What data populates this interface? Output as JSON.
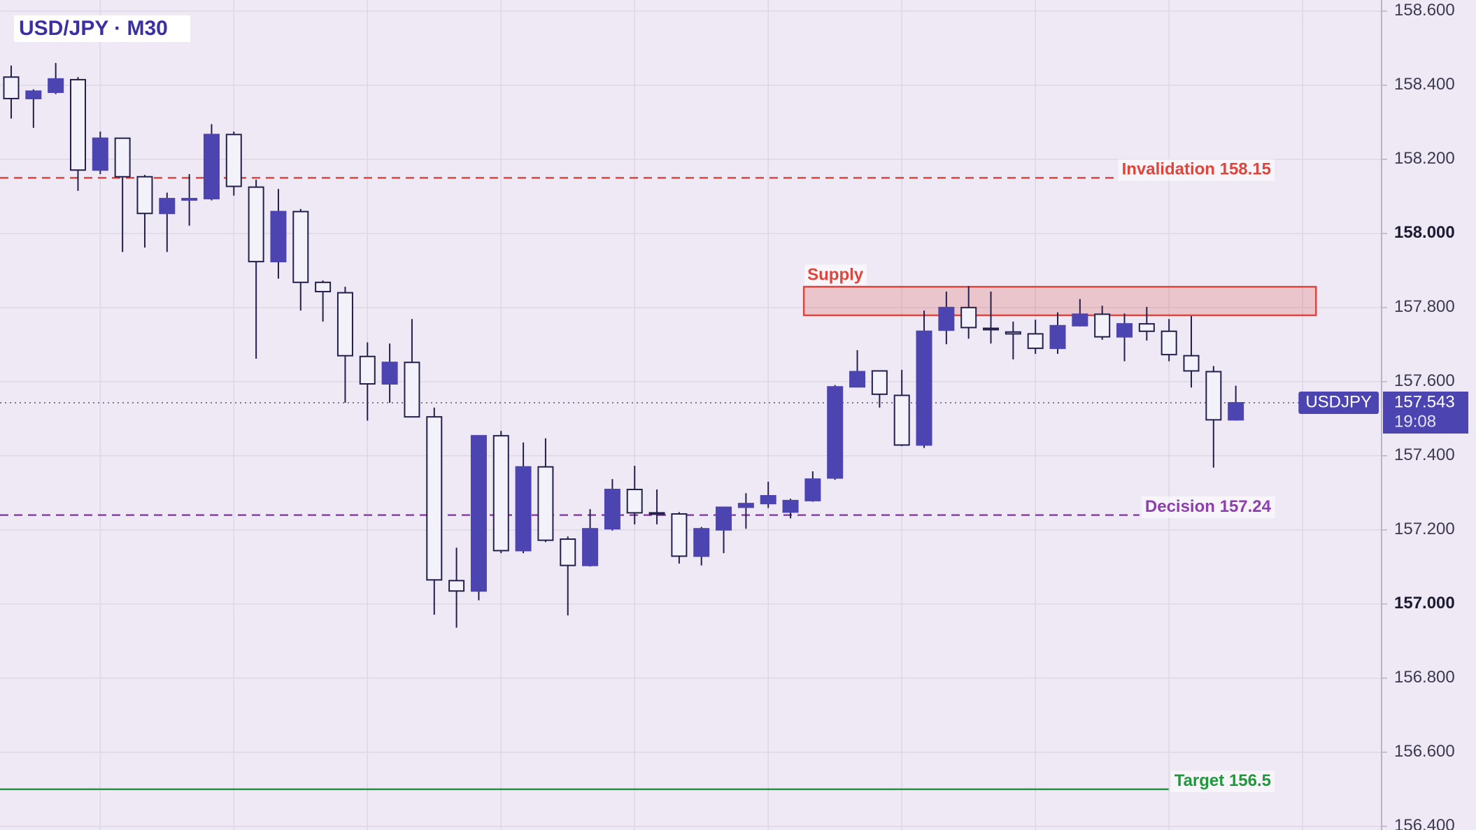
{
  "chart_data": {
    "type": "candlestick",
    "title": "USD/JPY · M30",
    "categories": [
      null,
      null,
      null,
      null,
      null,
      null,
      null,
      null,
      null,
      null,
      null,
      null,
      null,
      null,
      null,
      null,
      null,
      null,
      null,
      null,
      null,
      null,
      null,
      null,
      null,
      null,
      null,
      null,
      null,
      null,
      null,
      null,
      null,
      null,
      null,
      null,
      null,
      null,
      null,
      null,
      null,
      null,
      null,
      null,
      null,
      null,
      null,
      null,
      null,
      null,
      null,
      null,
      null,
      null,
      null,
      null
    ],
    "open": [
      158.422,
      158.364,
      158.381,
      158.415,
      158.171,
      158.257,
      158.153,
      158.054,
      158.094,
      158.094,
      158.267,
      158.125,
      157.924,
      158.059,
      157.868,
      157.84,
      157.668,
      157.594,
      157.652,
      157.505,
      157.063,
      157.035,
      157.454,
      157.144,
      157.37,
      157.175,
      157.104,
      157.203,
      157.309,
      157.246,
      157.243,
      157.129,
      157.2,
      157.261,
      157.271,
      157.248,
      157.279,
      157.34,
      157.586,
      157.629,
      157.563,
      157.429,
      157.739,
      157.8,
      157.744,
      157.734,
      157.729,
      157.69,
      157.751,
      157.782,
      157.721,
      157.756,
      157.736,
      157.67,
      157.627,
      157.497
    ],
    "high": [
      158.453,
      158.389,
      158.46,
      158.422,
      158.275,
      158.257,
      158.158,
      158.11,
      158.16,
      158.295,
      158.275,
      158.145,
      158.12,
      158.066,
      157.873,
      157.856,
      157.706,
      157.703,
      157.769,
      157.53,
      157.152,
      157.454,
      157.467,
      157.436,
      157.447,
      157.182,
      157.256,
      157.337,
      157.373,
      157.309,
      157.248,
      157.208,
      157.261,
      157.299,
      157.33,
      157.284,
      157.358,
      157.591,
      157.685,
      157.629,
      157.632,
      157.792,
      157.843,
      157.858,
      157.843,
      157.762,
      157.767,
      157.787,
      157.823,
      157.805,
      157.784,
      157.802,
      157.769,
      157.777,
      157.642,
      157.589
    ],
    "low": [
      158.31,
      158.285,
      158.376,
      158.115,
      158.16,
      157.95,
      157.962,
      157.95,
      158.021,
      158.089,
      158.102,
      157.662,
      157.878,
      157.792,
      157.762,
      157.543,
      157.495,
      157.543,
      157.505,
      156.971,
      156.936,
      157.01,
      157.137,
      157.137,
      157.167,
      156.969,
      157.101,
      157.198,
      157.215,
      157.215,
      157.109,
      157.104,
      157.137,
      157.203,
      157.259,
      157.231,
      157.276,
      157.335,
      157.586,
      157.53,
      157.426,
      157.421,
      157.701,
      157.716,
      157.703,
      157.66,
      157.675,
      157.675,
      157.749,
      157.713,
      157.655,
      157.711,
      157.655,
      157.584,
      157.368,
      157.495
    ],
    "close": [
      158.364,
      158.384,
      158.417,
      158.171,
      158.257,
      158.153,
      158.054,
      158.094,
      158.094,
      158.267,
      158.127,
      157.924,
      158.059,
      157.868,
      157.843,
      157.67,
      157.594,
      157.652,
      157.505,
      157.065,
      157.035,
      157.454,
      157.144,
      157.37,
      157.172,
      157.104,
      157.203,
      157.309,
      157.246,
      157.243,
      157.129,
      157.203,
      157.261,
      157.271,
      157.292,
      157.279,
      157.337,
      157.586,
      157.627,
      157.566,
      157.429,
      157.736,
      157.8,
      157.746,
      157.741,
      157.729,
      157.69,
      157.751,
      157.782,
      157.721,
      157.756,
      157.736,
      157.673,
      157.629,
      157.497,
      157.543
    ],
    "up_color": "#4c44b0",
    "down_color": "#f3f1fa",
    "wick_color": "#24204c",
    "ylim": [
      156.39,
      158.63
    ],
    "yticks": [
      {
        "value": 156.4,
        "label": "156.400"
      },
      {
        "value": 156.6,
        "label": "156.600"
      },
      {
        "value": 156.8,
        "label": "156.800"
      },
      {
        "value": 157,
        "label": "157.000"
      },
      {
        "value": 157.2,
        "label": "157.200"
      },
      {
        "value": 157.4,
        "label": "157.400"
      },
      {
        "value": 157.6,
        "label": "157.600"
      },
      {
        "value": 157.8,
        "label": "157.800"
      },
      {
        "value": 158,
        "label": "158.000"
      },
      {
        "value": 158.2,
        "label": "158.200"
      },
      {
        "value": 158.4,
        "label": "158.400"
      },
      {
        "value": 158.6,
        "label": "158.600"
      }
    ],
    "grid": true,
    "levels": [
      {
        "label": "Invalidation 158.15",
        "value": 158.15,
        "color": "#e0443a",
        "style": "dashed"
      },
      {
        "label": "Decision 157.24",
        "value": 157.24,
        "color": "#8e3fae",
        "style": "dashed"
      },
      {
        "label": "Target 156.5",
        "value": 156.5,
        "color": "#1e9a3c",
        "style": "solid"
      }
    ],
    "zone": {
      "label": "Supply",
      "from": 157.779,
      "to": 157.856,
      "start": 35.6,
      "end": 58.6,
      "color": "#e0443a"
    },
    "price": {
      "symbol": "USDJPY",
      "value": 157.543,
      "countdown": "19:08",
      "color": "#4c44b0"
    }
  }
}
